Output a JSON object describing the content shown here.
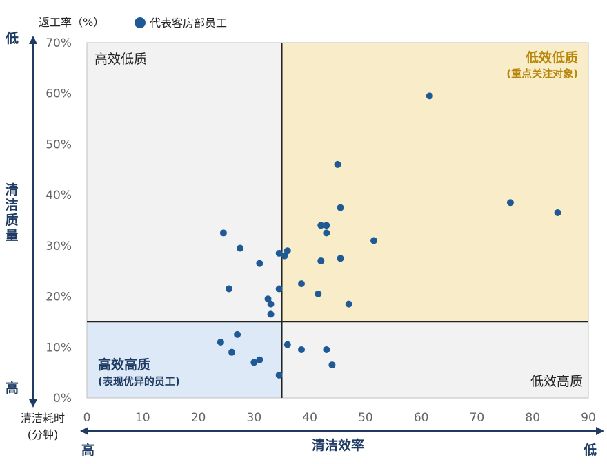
{
  "chart_data": {
    "type": "scatter",
    "ylabel": "返工率（%）",
    "legend": "代表客房部员工",
    "xlabel": "清洁效率",
    "x_title_lines": [
      "清洁耗时",
      "(分钟)"
    ],
    "y_title": "清洁质量",
    "y_axis_top": "低",
    "y_axis_bottom": "高",
    "x_axis_left": "高",
    "x_axis_right": "低",
    "xlim": [
      0,
      90
    ],
    "ylim": [
      0,
      70
    ],
    "x_ticks": [
      "0",
      "10",
      "20",
      "30",
      "40",
      "50",
      "60",
      "70",
      "80",
      "90"
    ],
    "y_ticks": [
      "0%",
      "10%",
      "20%",
      "30%",
      "40%",
      "50%",
      "60%",
      "70%"
    ],
    "divider_x": 35,
    "divider_y": 15,
    "quadrants": {
      "top_left": "高效低质",
      "top_right": "低效低质",
      "top_right_note": "(重点关注对象)",
      "bottom_left": "高效高质",
      "bottom_left_note": "(表现优异的员工)",
      "bottom_right": "低效高质"
    },
    "colors": {
      "points": "#1f5a96",
      "axis": "#1f3b63",
      "top_left_bg": "#f2f2f2",
      "top_right_bg": "#f8edc8",
      "bottom_left_bg": "#dde9f6",
      "bottom_right_bg": "#f2f2f2"
    },
    "points": [
      {
        "x": 61.5,
        "y": 59.5
      },
      {
        "x": 45,
        "y": 46
      },
      {
        "x": 76,
        "y": 38.5
      },
      {
        "x": 84.5,
        "y": 36.5
      },
      {
        "x": 45.5,
        "y": 37.5
      },
      {
        "x": 42,
        "y": 34
      },
      {
        "x": 43,
        "y": 34
      },
      {
        "x": 43,
        "y": 32.5
      },
      {
        "x": 51.5,
        "y": 31
      },
      {
        "x": 24.5,
        "y": 32.5
      },
      {
        "x": 27.5,
        "y": 29.5
      },
      {
        "x": 36,
        "y": 29
      },
      {
        "x": 34.5,
        "y": 28.5
      },
      {
        "x": 35.5,
        "y": 28
      },
      {
        "x": 45.5,
        "y": 27.5
      },
      {
        "x": 42,
        "y": 27
      },
      {
        "x": 31,
        "y": 26.5
      },
      {
        "x": 38.5,
        "y": 22.5
      },
      {
        "x": 25.5,
        "y": 21.5
      },
      {
        "x": 34.5,
        "y": 21.5
      },
      {
        "x": 41.5,
        "y": 20.5
      },
      {
        "x": 32.5,
        "y": 19.5
      },
      {
        "x": 33,
        "y": 18.5
      },
      {
        "x": 47,
        "y": 18.5
      },
      {
        "x": 33,
        "y": 16.5
      },
      {
        "x": 27,
        "y": 12.5
      },
      {
        "x": 24,
        "y": 11
      },
      {
        "x": 36,
        "y": 10.5
      },
      {
        "x": 38.5,
        "y": 9.5
      },
      {
        "x": 43,
        "y": 9.5
      },
      {
        "x": 26,
        "y": 9
      },
      {
        "x": 31,
        "y": 7.5
      },
      {
        "x": 30,
        "y": 7
      },
      {
        "x": 44,
        "y": 6.5
      },
      {
        "x": 34.5,
        "y": 4.5
      }
    ]
  }
}
